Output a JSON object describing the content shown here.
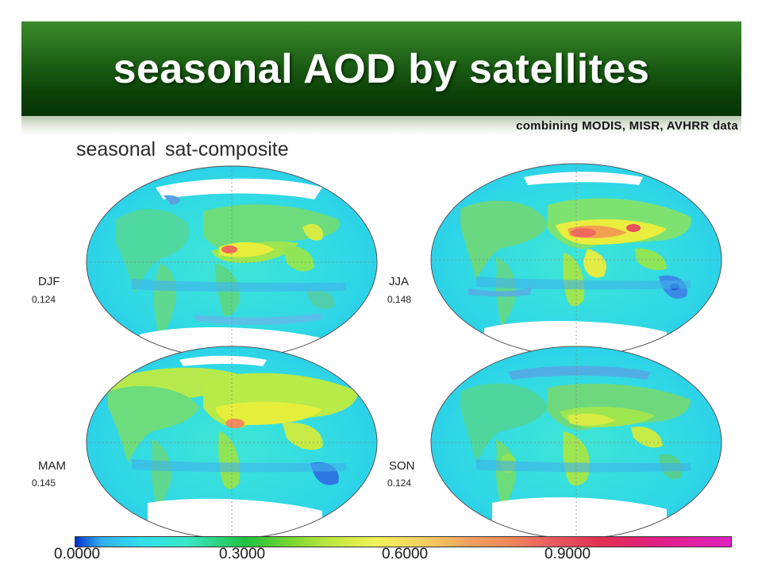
{
  "header": {
    "title": "seasonal AOD by satellites",
    "subtitle": "combining MODIS, MISR, AVHRR data"
  },
  "figure": {
    "title": "seasonal  sat-composite",
    "panels": [
      {
        "season": "DJF",
        "mean_aod": "0.124"
      },
      {
        "season": "JJA",
        "mean_aod": "0.148"
      },
      {
        "season": "MAM",
        "mean_aod": "0.145"
      },
      {
        "season": "SON",
        "mean_aod": "0.124"
      }
    ]
  },
  "colorbar": {
    "ticks": [
      "0.0000",
      "0.3000",
      "0.6000",
      "0.9000"
    ],
    "colors": {
      "low": "#0044dd",
      "cyan": "#30e0ec",
      "green": "#20c040",
      "yellow": "#f2f25a",
      "orange": "#f08a5a",
      "red": "#e03050",
      "magenta": "#e020c0"
    }
  }
}
